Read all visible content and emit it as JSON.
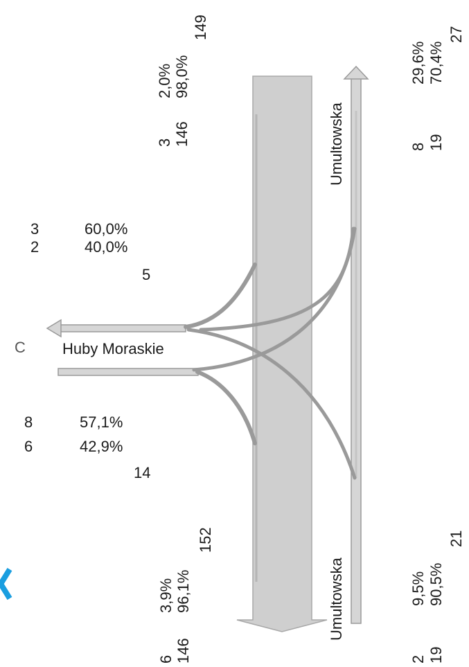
{
  "colors": {
    "main_band_fill": "#cfcfcf",
    "main_band_stroke": "#a8a8a8",
    "ramp_fill": "#d6d6d6",
    "ramp_stroke": "#9a9a9a",
    "marker_blue": "#1a9ee0",
    "text": "#1a1a1a"
  },
  "icons": [
    "arrow-up-icon",
    "arrow-down-icon",
    "arrow-left-icon",
    "chevron-icon"
  ],
  "streets": {
    "upper": "Umultowska",
    "lower": "Umultowska",
    "side": "Huby Moraskie"
  },
  "side_marker": "C",
  "top": {
    "total_main": "149",
    "left_pct": "2,0%",
    "right_pct": "98,0%",
    "left_count": "3",
    "right_count": "146",
    "total_ramp": "27",
    "ramp_pct_a": "29,6%",
    "ramp_pct_b": "70,4%",
    "ramp_count_a": "8",
    "ramp_count_b": "19"
  },
  "side_in": {
    "count_a": "3",
    "pct_a": "60,0%",
    "count_b": "2",
    "pct_b": "40,0%",
    "total": "5"
  },
  "side_out": {
    "count_a": "8",
    "pct_a": "57,1%",
    "count_b": "6",
    "pct_b": "42,9%",
    "total": "14"
  },
  "bottom": {
    "total_main": "152",
    "left_pct": "3,9%",
    "right_pct": "96,1%",
    "left_count": "6",
    "right_count": "146",
    "total_ramp": "21",
    "ramp_pct_a": "9,5%",
    "ramp_pct_b": "90,5%",
    "ramp_count_a": "2",
    "ramp_count_b": "19"
  }
}
